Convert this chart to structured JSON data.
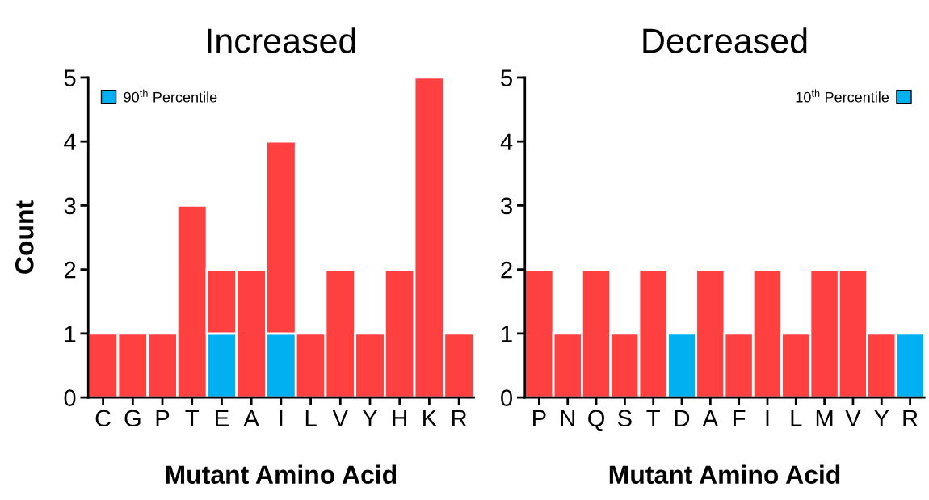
{
  "chart_data": [
    {
      "type": "bar",
      "title": "Increased",
      "xlabel": "Mutant Amino Acid",
      "ylabel": "Count",
      "stacked": true,
      "legend": "top left",
      "categories": [
        "C",
        "G",
        "P",
        "T",
        "E",
        "A",
        "I",
        "L",
        "V",
        "Y",
        "H",
        "K",
        "R"
      ],
      "series": [
        {
          "name": "90$^{th}$ Percentile",
          "color": "#00b0f0",
          "values": [
            null,
            null,
            null,
            null,
            1,
            null,
            1,
            null,
            null,
            null,
            null,
            null,
            null
          ]
        },
        {
          "color": "#ff4040",
          "values": [
            1,
            1,
            1,
            3,
            1,
            2,
            3,
            1,
            2,
            1,
            2,
            5,
            1
          ]
        }
      ],
      "ylim": [
        0,
        5
      ],
      "yticks": [
        0,
        1,
        2,
        3,
        4,
        5
      ],
      "grid": false
    },
    {
      "type": "bar",
      "title": "Decreased",
      "xlabel": "Mutant Amino Acid",
      "stacked": true,
      "legend": "top right",
      "categories": [
        "P",
        "N",
        "Q",
        "S",
        "T",
        "D",
        "A",
        "F",
        "I",
        "L",
        "M",
        "V",
        "Y",
        "R"
      ],
      "series": [
        {
          "name": "10$^{th}$ Percentile",
          "color": "#00b0f0",
          "values": [
            null,
            null,
            null,
            null,
            null,
            1,
            null,
            null,
            null,
            null,
            null,
            null,
            null,
            1
          ]
        },
        {
          "color": "#ff4040",
          "values": [
            2,
            1,
            2,
            1,
            2,
            null,
            2,
            1,
            2,
            1,
            2,
            2,
            1,
            null
          ]
        }
      ],
      "ylim": [
        0,
        5
      ],
      "yticks": [
        0,
        1,
        2,
        3,
        4,
        5
      ],
      "grid": false
    }
  ]
}
